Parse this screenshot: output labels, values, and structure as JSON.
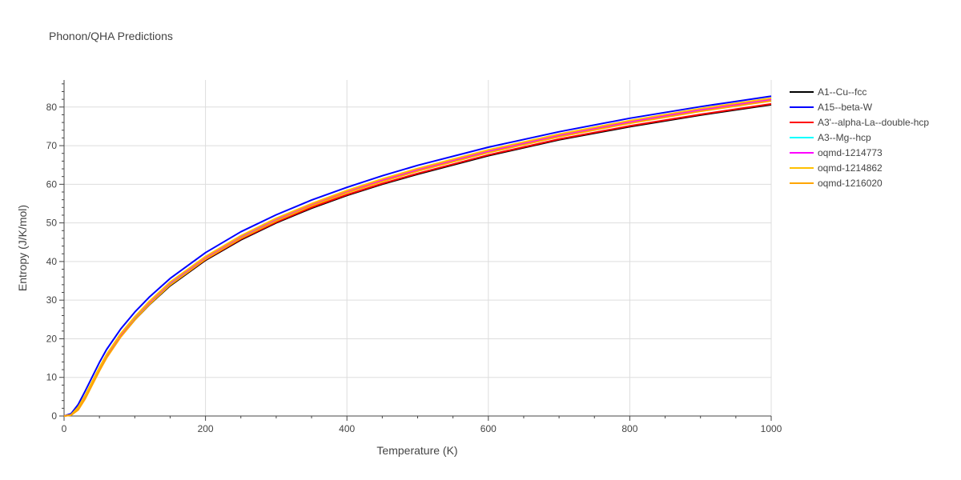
{
  "chart_data": {
    "type": "line",
    "title": "Phonon/QHA Predictions",
    "xlabel": "Temperature (K)",
    "ylabel": "Entropy (J/K/mol)",
    "xlim": [
      0,
      1000
    ],
    "ylim": [
      0,
      87
    ],
    "x_ticks": [
      0,
      200,
      400,
      600,
      800,
      1000
    ],
    "y_ticks": [
      0,
      10,
      20,
      30,
      40,
      50,
      60,
      70,
      80
    ],
    "grid": true,
    "legend_position": "right",
    "x": [
      0,
      10,
      20,
      30,
      40,
      50,
      60,
      80,
      100,
      120,
      150,
      200,
      250,
      300,
      350,
      400,
      450,
      500,
      600,
      700,
      800,
      900,
      1000
    ],
    "series": [
      {
        "name": "A1--Cu--fcc",
        "color": "#000000",
        "values": [
          0,
          0.3,
          2.0,
          5.0,
          8.5,
          12.0,
          15.2,
          20.5,
          24.9,
          28.7,
          33.7,
          40.3,
          45.6,
          50.0,
          53.8,
          57.1,
          60.0,
          62.6,
          67.4,
          71.5,
          74.9,
          77.9,
          80.6
        ]
      },
      {
        "name": "A15--beta-W",
        "color": "#0000ff",
        "values": [
          0,
          0.6,
          3.0,
          6.5,
          10.2,
          13.9,
          17.2,
          22.5,
          26.9,
          30.7,
          35.6,
          42.3,
          47.7,
          52.1,
          55.9,
          59.2,
          62.2,
          64.9,
          69.6,
          73.6,
          77.1,
          80.1,
          82.8
        ]
      },
      {
        "name": "A3'--alpha-La--double-hcp",
        "color": "#ff0000",
        "values": [
          0,
          0.3,
          2.1,
          5.1,
          8.7,
          12.2,
          15.4,
          20.7,
          25.1,
          28.9,
          33.9,
          40.5,
          45.8,
          50.2,
          54.0,
          57.3,
          60.2,
          62.8,
          67.6,
          71.7,
          75.1,
          78.1,
          80.8
        ]
      },
      {
        "name": "A3--Mg--hcp",
        "color": "#00ffff",
        "values": [
          0,
          0.3,
          2.2,
          5.3,
          8.9,
          12.5,
          15.8,
          21.1,
          25.5,
          29.3,
          34.4,
          41.0,
          46.4,
          50.8,
          54.6,
          58.0,
          60.9,
          63.6,
          68.4,
          72.5,
          76.0,
          79.0,
          81.7
        ]
      },
      {
        "name": "oqmd-1214773",
        "color": "#ff00ff",
        "values": [
          0,
          0.3,
          2.2,
          5.3,
          8.9,
          12.5,
          15.8,
          21.1,
          25.6,
          29.4,
          34.5,
          41.1,
          46.5,
          51.0,
          54.8,
          58.2,
          61.1,
          63.8,
          68.6,
          72.7,
          76.2,
          79.3,
          82.0
        ]
      },
      {
        "name": "oqmd-1214862",
        "color": "#ffc000",
        "values": [
          0,
          0.3,
          2.3,
          5.4,
          9.0,
          12.6,
          15.9,
          21.3,
          25.7,
          29.6,
          34.7,
          41.3,
          46.7,
          51.2,
          55.0,
          58.4,
          61.4,
          64.1,
          68.9,
          73.0,
          76.5,
          79.6,
          82.3
        ]
      },
      {
        "name": "oqmd-1216020",
        "color": "#ffa500",
        "values": [
          0,
          0.2,
          1.6,
          4.5,
          8.1,
          11.7,
          15.0,
          20.4,
          24.9,
          28.8,
          33.9,
          40.6,
          46.0,
          50.5,
          54.4,
          57.8,
          60.7,
          63.4,
          68.2,
          72.3,
          75.8,
          78.9,
          81.6
        ]
      }
    ]
  }
}
